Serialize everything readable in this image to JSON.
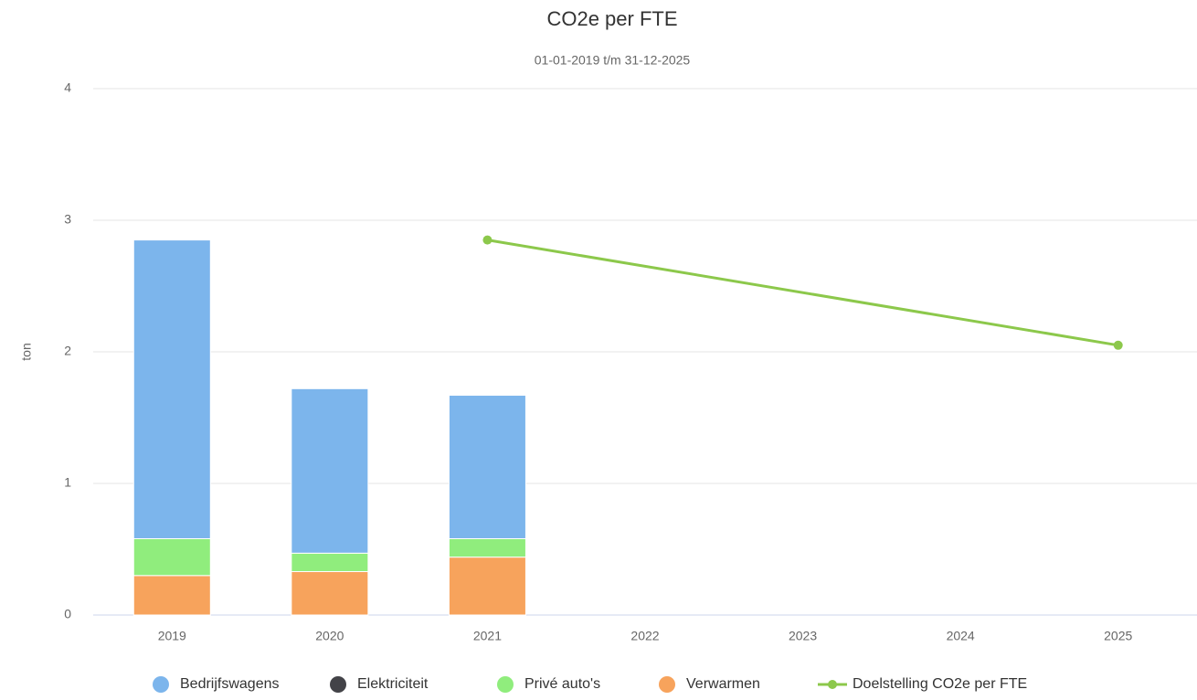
{
  "chart_data": {
    "type": "stacked_bar_line",
    "title": "CO2e per FTE",
    "subtitle": "01-01-2019 t/m 31-12-2025",
    "ylabel": "ton",
    "categories": [
      "2019",
      "2020",
      "2021",
      "2022",
      "2023",
      "2024",
      "2025"
    ],
    "series": [
      {
        "name": "Bedrijfswagens",
        "color": "#7cb5ec",
        "type": "bar",
        "values": [
          2.27,
          1.25,
          1.09,
          null,
          null,
          null,
          null
        ]
      },
      {
        "name": "Elektriciteit",
        "color": "#434348",
        "type": "bar",
        "values": [
          0,
          0,
          0,
          null,
          null,
          null,
          null
        ]
      },
      {
        "name": "Privé auto's",
        "color": "#90ed7d",
        "type": "bar",
        "values": [
          0.28,
          0.14,
          0.14,
          null,
          null,
          null,
          null
        ]
      },
      {
        "name": "Verwarmen",
        "color": "#f7a35c",
        "type": "bar",
        "values": [
          0.3,
          0.33,
          0.44,
          null,
          null,
          null,
          null
        ]
      },
      {
        "name": "Doelstelling CO2e per FTE",
        "color": "#8cc84b",
        "type": "line",
        "connect_nulls": true,
        "values": [
          null,
          null,
          2.85,
          null,
          null,
          null,
          2.05
        ]
      }
    ],
    "ylim": [
      0,
      4
    ],
    "yticks": [
      0,
      1,
      2,
      3,
      4
    ],
    "grid": true
  }
}
